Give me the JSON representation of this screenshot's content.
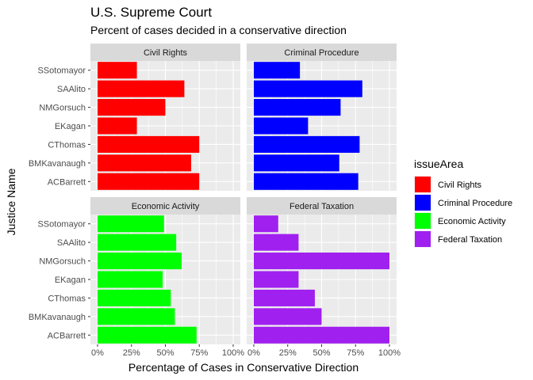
{
  "chart_data": {
    "type": "bar",
    "orientation": "horizontal",
    "title": "U.S. Supreme Court",
    "subtitle": "Percent of cases decided in a conservative direction",
    "xlabel": "Percentage of Cases in Conservative Direction",
    "ylabel": "Justice Name",
    "xlim": [
      0,
      1
    ],
    "x_ticks": [
      "0%",
      "25%",
      "50%",
      "75%",
      "100%"
    ],
    "grid": true,
    "categories": [
      "SSotomayor",
      "SAAlito",
      "NMGorsuch",
      "EKagan",
      "CThomas",
      "BMKavanaugh",
      "ACBarrett"
    ],
    "legend": {
      "title": "issueArea",
      "position": "right"
    },
    "facets": [
      {
        "name": "Civil Rights",
        "color": "#ff0000",
        "values": [
          0.29,
          0.64,
          0.5,
          0.29,
          0.75,
          0.69,
          0.75
        ]
      },
      {
        "name": "Criminal Procedure",
        "color": "#0000ff",
        "values": [
          0.34,
          0.8,
          0.64,
          0.4,
          0.78,
          0.63,
          0.77
        ]
      },
      {
        "name": "Economic Activity",
        "color": "#00ff00",
        "values": [
          0.49,
          0.58,
          0.62,
          0.48,
          0.54,
          0.57,
          0.73
        ]
      },
      {
        "name": "Federal Taxation",
        "color": "#a020f0",
        "values": [
          0.18,
          0.33,
          1.0,
          0.33,
          0.45,
          0.5,
          1.0
        ]
      }
    ]
  }
}
